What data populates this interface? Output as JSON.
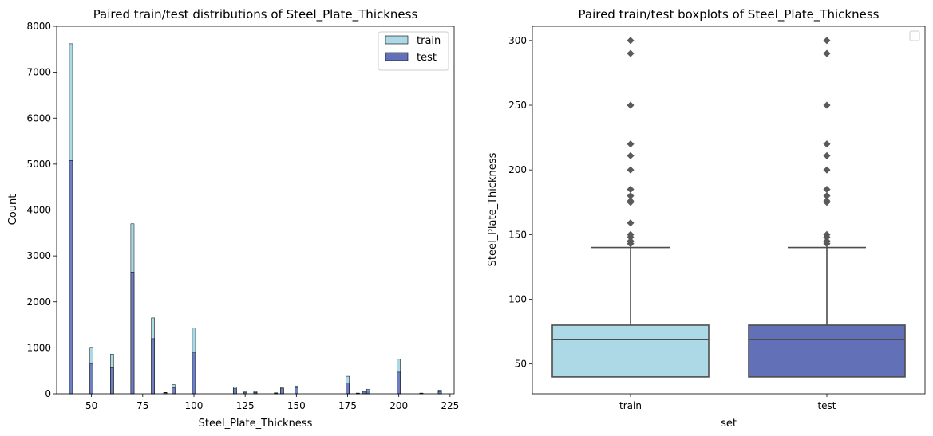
{
  "colors": {
    "train": "#add8e6",
    "test": "#6270b8",
    "box_line": "#4d4d4d",
    "outlier": "#5a5a5a",
    "edge": "#000000"
  },
  "chart_data": [
    {
      "type": "bar",
      "subtype": "histogram",
      "title": "Paired train/test distributions of Steel_Plate_Thickness",
      "xlabel": "Steel_Plate_Thickness",
      "ylabel": "Count",
      "xlim": [
        33,
        227
      ],
      "ylim": [
        0,
        8000
      ],
      "xticks": [
        50,
        75,
        100,
        125,
        150,
        175,
        200,
        225
      ],
      "yticks": [
        0,
        1000,
        2000,
        3000,
        4000,
        5000,
        6000,
        7000,
        8000
      ],
      "legend": {
        "position": "top-right",
        "entries": [
          "train",
          "test"
        ]
      },
      "grid": false,
      "bins": [
        {
          "x": 40,
          "train": 7620,
          "test": 5080
        },
        {
          "x": 50,
          "train": 1010,
          "test": 650
        },
        {
          "x": 60,
          "train": 860,
          "test": 570
        },
        {
          "x": 70,
          "train": 3700,
          "test": 2650
        },
        {
          "x": 80,
          "train": 1650,
          "test": 1200
        },
        {
          "x": 86,
          "train": 30,
          "test": 20
        },
        {
          "x": 90,
          "train": 200,
          "test": 130
        },
        {
          "x": 100,
          "train": 1430,
          "test": 890
        },
        {
          "x": 120,
          "train": 150,
          "test": 110
        },
        {
          "x": 125,
          "train": 40,
          "test": 25
        },
        {
          "x": 130,
          "train": 50,
          "test": 30
        },
        {
          "x": 140,
          "train": 20,
          "test": 15
        },
        {
          "x": 143,
          "train": 130,
          "test": 110
        },
        {
          "x": 150,
          "train": 170,
          "test": 130
        },
        {
          "x": 175,
          "train": 380,
          "test": 230
        },
        {
          "x": 180,
          "train": 15,
          "test": 10
        },
        {
          "x": 183,
          "train": 60,
          "test": 40
        },
        {
          "x": 185,
          "train": 100,
          "test": 70
        },
        {
          "x": 200,
          "train": 750,
          "test": 470
        },
        {
          "x": 211,
          "train": 15,
          "test": 10
        },
        {
          "x": 220,
          "train": 80,
          "test": 50
        }
      ]
    },
    {
      "type": "boxplot",
      "title": "Paired train/test boxplots of Steel_Plate_Thickness",
      "xlabel": "set",
      "ylabel": "Steel_Plate_Thickness",
      "ylim": [
        27,
        311
      ],
      "yticks": [
        50,
        100,
        150,
        200,
        250,
        300
      ],
      "categories": [
        "train",
        "test"
      ],
      "legend": {
        "position": "top-right",
        "entries": []
      },
      "grid": false,
      "boxes": [
        {
          "name": "train",
          "whisker_low": 40,
          "q1": 40,
          "median": 69,
          "q3": 80,
          "whisker_high": 140,
          "outliers": [
            143,
            145,
            148,
            150,
            159,
            175,
            176,
            180,
            185,
            200,
            211,
            220,
            250,
            290,
            300
          ]
        },
        {
          "name": "test",
          "whisker_low": 40,
          "q1": 40,
          "median": 69,
          "q3": 80,
          "whisker_high": 140,
          "outliers": [
            143,
            145,
            148,
            150,
            175,
            176,
            180,
            185,
            200,
            211,
            220,
            250,
            290,
            300
          ]
        }
      ]
    }
  ]
}
